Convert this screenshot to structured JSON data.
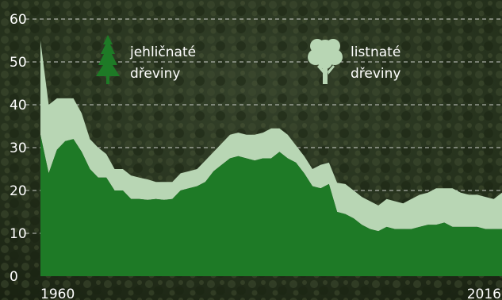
{
  "chart_data": {
    "type": "area",
    "stacked": true,
    "x_range": [
      1960,
      2016
    ],
    "x_tick_labels": [
      "1960",
      "2016"
    ],
    "ylim": [
      0,
      60
    ],
    "y_ticks": [
      0,
      10,
      20,
      30,
      40,
      50,
      60
    ],
    "grid": "horizontal-dashed",
    "legend_placement": "top",
    "colors": {
      "conifers": "#1e7a26",
      "broadleaf": "#b8d6b4",
      "grid": "#ffffff",
      "text": "#ffffff",
      "background_top": "#2e3a22",
      "background_bottom": "#1f2a16"
    },
    "icons": {
      "conifers": "conifer-tree-icon",
      "broadleaf": "deciduous-tree-icon"
    },
    "x": [
      1960,
      1961,
      1962,
      1963,
      1964,
      1965,
      1966,
      1967,
      1968,
      1969,
      1970,
      1971,
      1972,
      1973,
      1974,
      1975,
      1976,
      1977,
      1978,
      1979,
      1980,
      1981,
      1982,
      1983,
      1984,
      1985,
      1986,
      1987,
      1988,
      1989,
      1990,
      1991,
      1992,
      1993,
      1994,
      1995,
      1996,
      1997,
      1998,
      1999,
      2000,
      2001,
      2002,
      2003,
      2004,
      2005,
      2006,
      2007,
      2008,
      2009,
      2010,
      2011,
      2012,
      2013,
      2014,
      2015,
      2016
    ],
    "series": [
      {
        "name": "jehličnaté dřeviny",
        "values": [
          33,
          24,
          29.5,
          31.5,
          32,
          29,
          25,
          23,
          23,
          20,
          20,
          18,
          18,
          17.8,
          18,
          17.8,
          18,
          20,
          20.5,
          21,
          22,
          24.5,
          26,
          27.5,
          28,
          27.5,
          27,
          27.5,
          27.5,
          29,
          27.5,
          26.5,
          24,
          21,
          20.5,
          21.5,
          15,
          14.5,
          13.5,
          12,
          11,
          10.5,
          11.5,
          11,
          11,
          11,
          11.5,
          12,
          12,
          12.5,
          11.5,
          11.5,
          11.5,
          11.5,
          11,
          11,
          11
        ]
      },
      {
        "name": "listnaté dřeviny",
        "values": [
          22,
          16,
          12,
          10,
          9.5,
          9,
          7,
          7,
          5.5,
          5,
          5,
          5.5,
          5,
          4.8,
          4,
          4.2,
          4,
          4,
          4,
          4,
          5,
          4.5,
          5,
          5.5,
          5.5,
          5.5,
          6,
          6,
          7,
          5.5,
          5.5,
          4,
          4,
          4,
          5.5,
          5,
          6.8,
          7,
          6.5,
          6.5,
          6.5,
          6,
          6.5,
          6.5,
          6,
          7,
          7.5,
          7.5,
          8.5,
          8,
          9,
          8,
          7.5,
          7.5,
          7.5,
          7,
          8.5
        ]
      }
    ],
    "legend": [
      {
        "label_line1": "jehličnaté",
        "label_line2": "dřeviny"
      },
      {
        "label_line1": "listnaté",
        "label_line2": "dřeviny"
      }
    ]
  }
}
